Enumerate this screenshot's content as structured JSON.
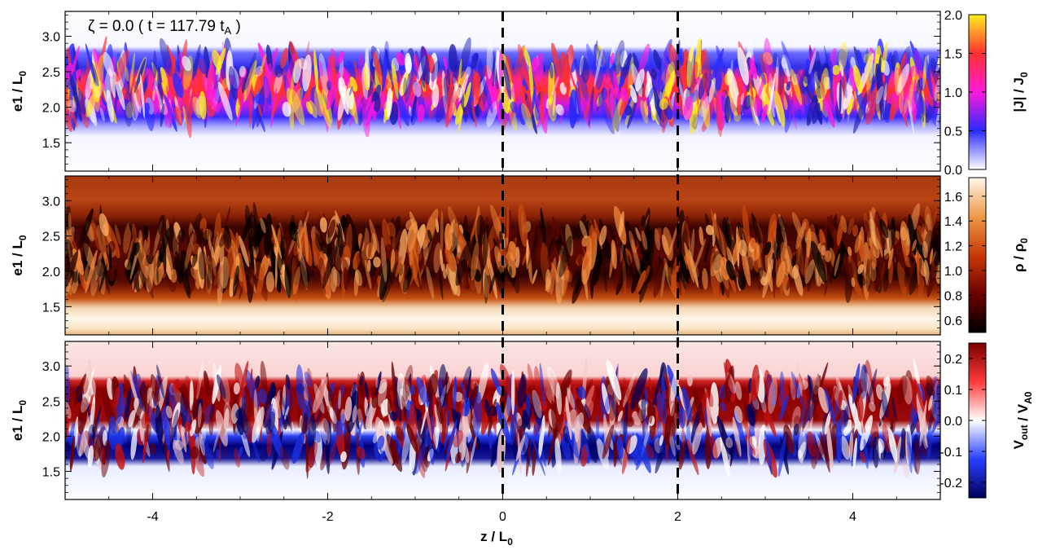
{
  "annotation": {
    "greek": "ζ",
    "text_main": " = 0.0  ( t = 117.79 t",
    "text_sub": "A",
    "text_end": " )"
  },
  "x_axis": {
    "label_main": "z / L",
    "label_sub": "0",
    "range": [
      -5,
      5
    ],
    "ticks": [
      -4,
      -2,
      0,
      2,
      4
    ]
  },
  "dashed_lines_z": [
    0,
    2
  ],
  "panels": [
    {
      "id": "current",
      "ylabel_main": "e1 / L",
      "ylabel_sub": "0",
      "ylim": [
        1.1,
        3.35
      ],
      "yticks": [
        "1.5",
        "2.0",
        "2.5",
        "3.0"
      ],
      "ytick_values": [
        1.5,
        2.0,
        2.5,
        3.0
      ],
      "colorbar": {
        "label_parts": [
          {
            "t": "|J| / J"
          },
          {
            "t": "0",
            "sub": true
          }
        ],
        "range": [
          0.0,
          2.0
        ],
        "ticks": [
          "0.0",
          "0.5",
          "1.0",
          "1.5",
          "2.0"
        ],
        "tick_values": [
          0.0,
          0.5,
          1.0,
          1.5,
          2.0
        ],
        "colors": [
          "#ffffff",
          "#2a2aff",
          "#ff1adc",
          "#ff3030",
          "#ffee22"
        ]
      }
    },
    {
      "id": "density",
      "ylabel_main": "e1 / L",
      "ylabel_sub": "0",
      "ylim": [
        1.1,
        3.35
      ],
      "yticks": [
        "1.5",
        "2.0",
        "2.5",
        "3.0"
      ],
      "ytick_values": [
        1.5,
        2.0,
        2.5,
        3.0
      ],
      "colorbar": {
        "label_parts": [
          {
            "t": "ρ / ρ"
          },
          {
            "t": "0",
            "sub": true
          }
        ],
        "range": [
          0.5,
          1.75
        ],
        "ticks": [
          "0.6",
          "0.8",
          "1.0",
          "1.2",
          "1.4",
          "1.6"
        ],
        "tick_values": [
          0.6,
          0.8,
          1.0,
          1.2,
          1.4,
          1.6
        ],
        "colors": [
          "#000000",
          "#6e0000",
          "#c83a06",
          "#ee9a48",
          "#fff6ea"
        ]
      }
    },
    {
      "id": "velocity",
      "ylabel_main": "e1 / L",
      "ylabel_sub": "0",
      "ylim": [
        1.1,
        3.35
      ],
      "yticks": [
        "1.5",
        "2.0",
        "2.5",
        "3.0"
      ],
      "ytick_values": [
        1.5,
        2.0,
        2.5,
        3.0
      ],
      "colorbar": {
        "label_parts": [
          {
            "t": "V"
          },
          {
            "t": "out",
            "sub": true
          },
          {
            "t": " / V"
          },
          {
            "t": "A0",
            "sub": true
          }
        ],
        "range": [
          -0.25,
          0.25
        ],
        "ticks": [
          "-0.2",
          "-0.1",
          "0.0",
          "0.1",
          "0.2"
        ],
        "tick_values": [
          -0.2,
          -0.1,
          0.0,
          0.1,
          0.2
        ],
        "colors": [
          "#00005a",
          "#2840ff",
          "#ffffff",
          "#ff3a3a",
          "#7a0000"
        ]
      }
    }
  ],
  "chart_data": [
    {
      "type": "heatmap",
      "title": "",
      "quantity": "|J| / J0",
      "xlabel": "z / L0",
      "ylabel": "e1 / L0",
      "xlim": [
        -5,
        5
      ],
      "ylim": [
        1.1,
        3.35
      ],
      "colorbar_range": [
        0.0,
        2.0
      ],
      "note_band": "turbulent current layer between e1 ≈ 1.8 and 2.7, peak near 2.2"
    },
    {
      "type": "heatmap",
      "title": "",
      "quantity": "ρ / ρ0",
      "xlabel": "z / L0",
      "ylabel": "e1 / L0",
      "xlim": [
        -5,
        5
      ],
      "ylim": [
        1.1,
        3.35
      ],
      "colorbar_range": [
        0.5,
        1.75
      ]
    },
    {
      "type": "heatmap",
      "title": "",
      "quantity": "Vout / VA0",
      "xlabel": "z / L0",
      "ylabel": "e1 / L0",
      "xlim": [
        -5,
        5
      ],
      "ylim": [
        1.1,
        3.35
      ],
      "colorbar_range": [
        -0.25,
        0.25
      ]
    }
  ]
}
